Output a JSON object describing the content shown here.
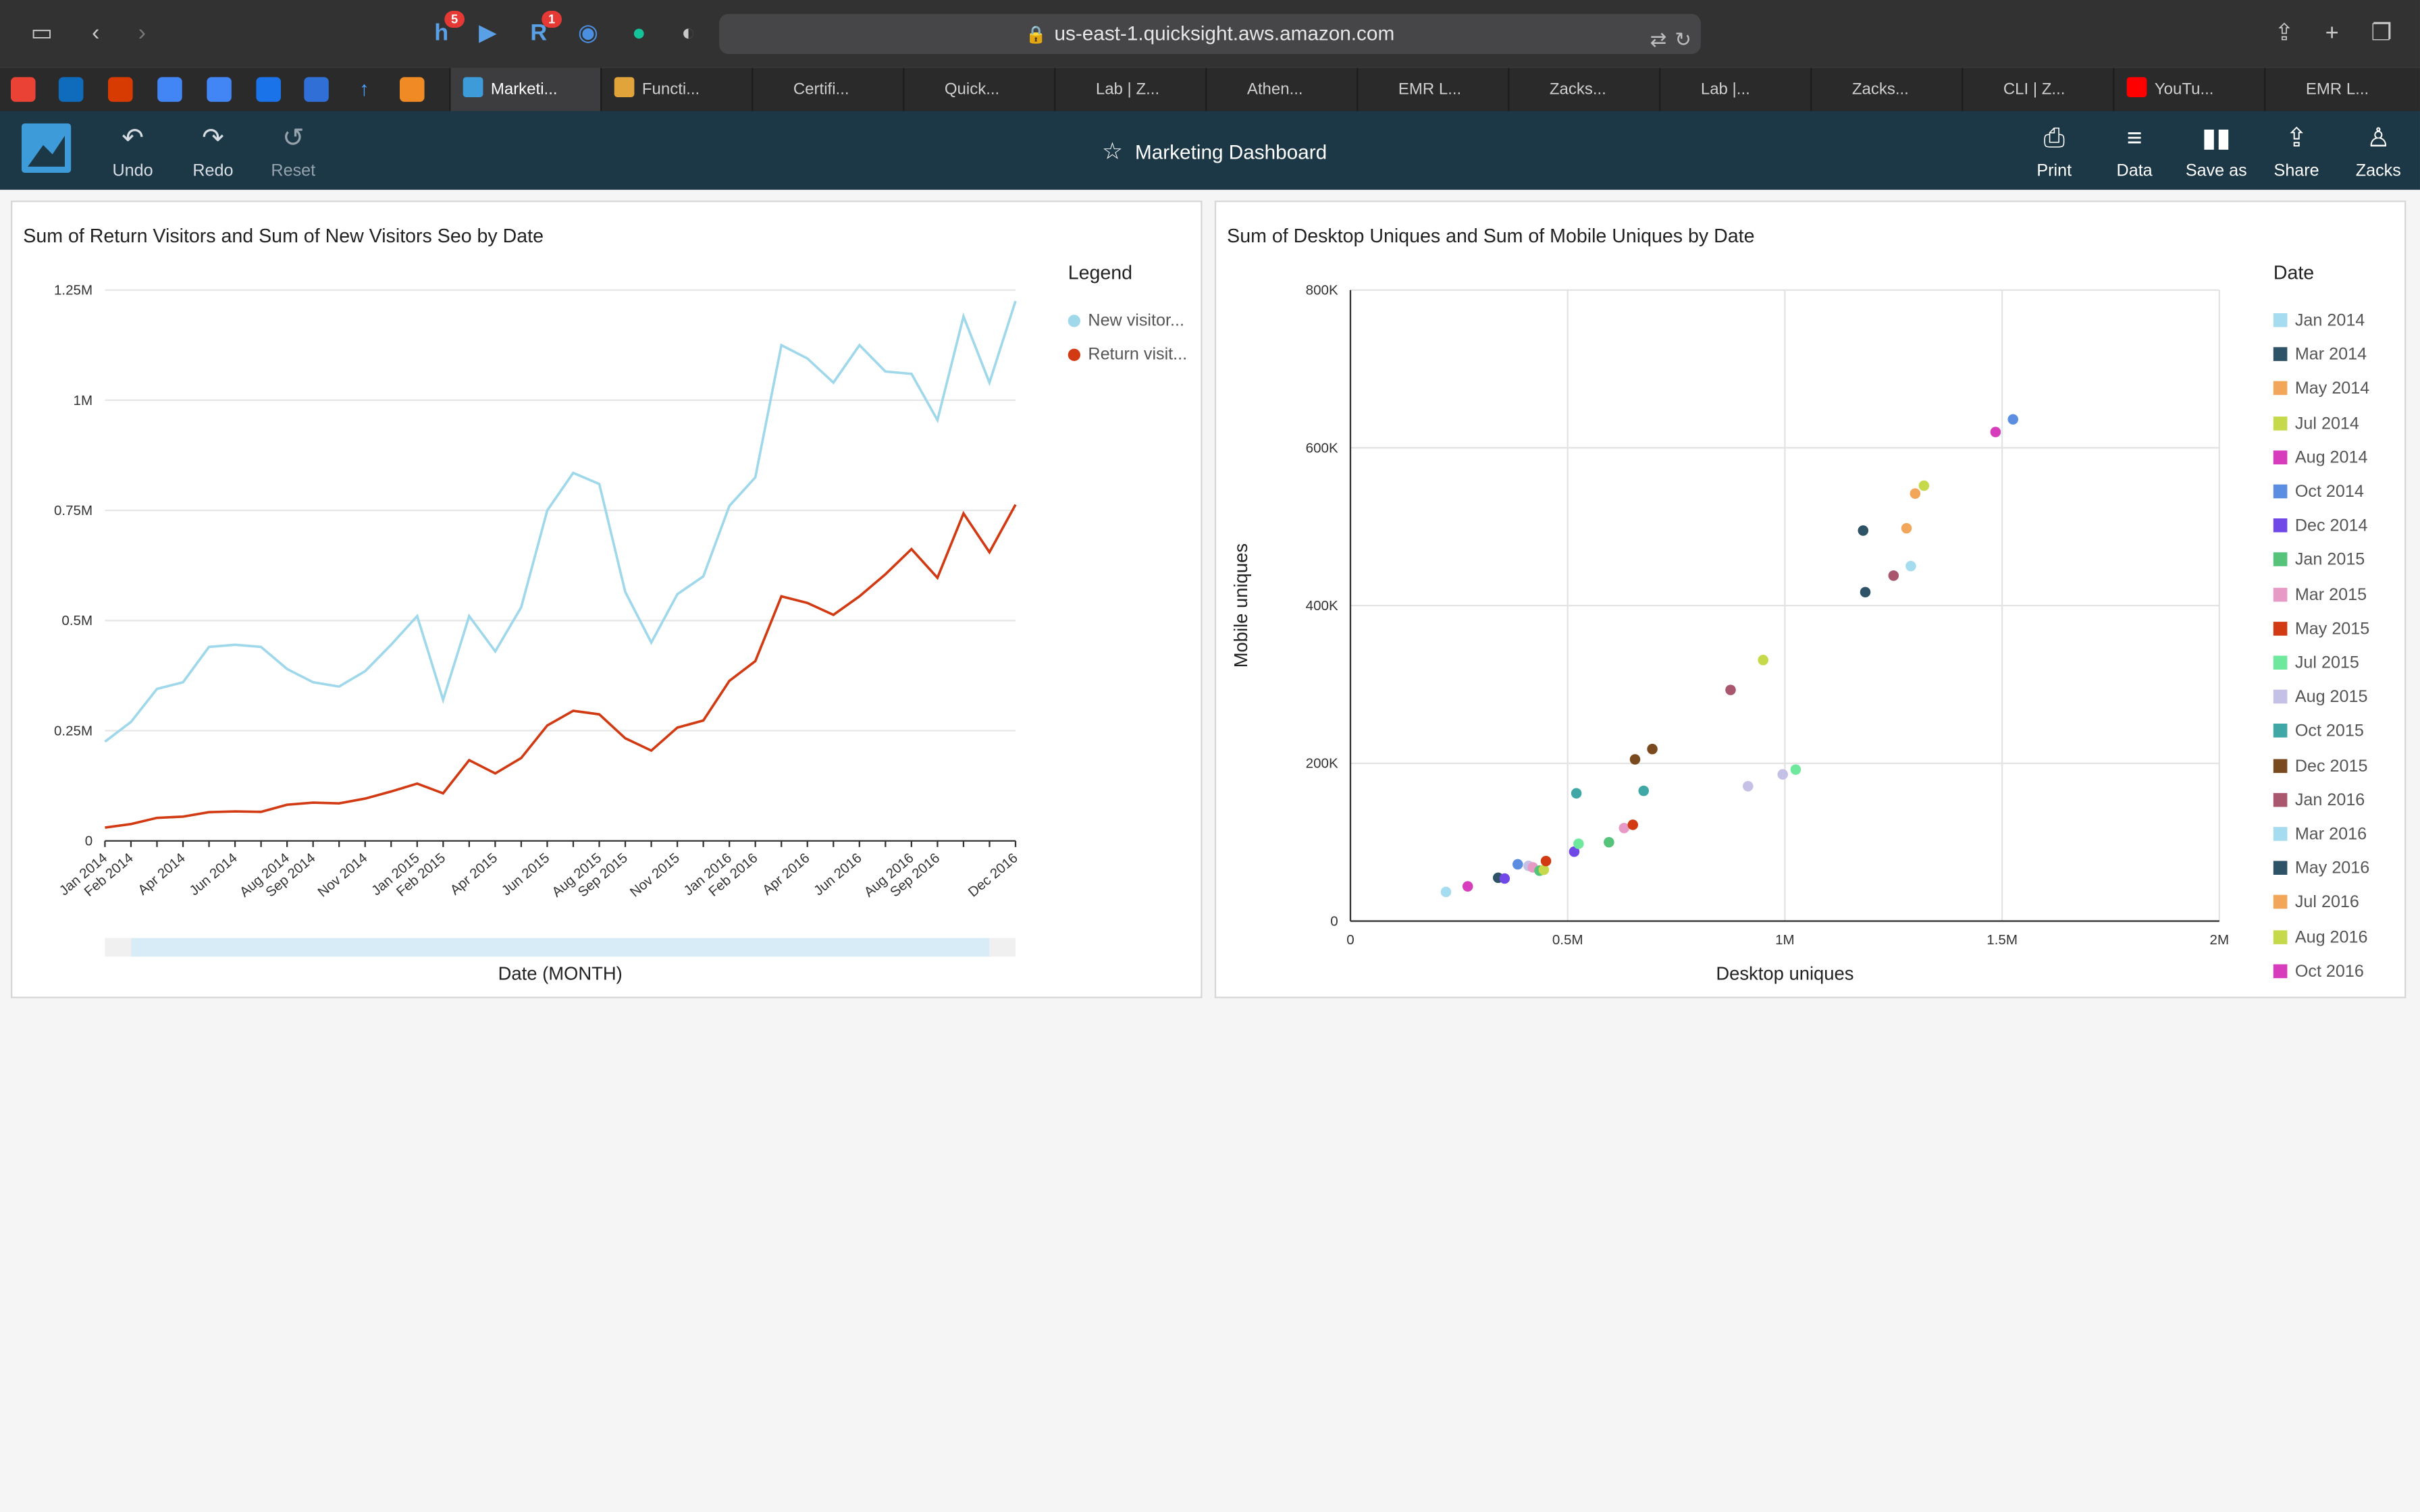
{
  "browser": {
    "url": "us-east-1.quicksight.aws.amazon.com",
    "badges": {
      "honey": "5",
      "r_ext": "1"
    },
    "tabs": [
      "Marketi...",
      "Functi...",
      "Certifi...",
      "Quick...",
      "Lab | Z...",
      "Athen...",
      "EMR L...",
      "Zacks...",
      "Lab |...",
      "Zacks...",
      "CLI | Z...",
      "YouTu...",
      "EMR L..."
    ]
  },
  "app": {
    "undo": "Undo",
    "redo": "Redo",
    "reset": "Reset",
    "dashboard_title": "Marketing Dashboard",
    "print": "Print",
    "data": "Data",
    "save_as": "Save as",
    "share": "Share",
    "user": "Zacks"
  },
  "colors": {
    "new_visitors": "#9fd8ea",
    "return_visitors": "#d13a12",
    "header_bg": "#1c3746"
  },
  "chart_data": [
    {
      "type": "line",
      "title": "Sum of Return Visitors and Sum of New Visitors Seo by Date",
      "xlabel": "Date (MONTH)",
      "ylabel": "",
      "legend_title": "Legend",
      "legend_position": "right",
      "ylim": [
        0,
        1250000
      ],
      "y_ticks": [
        "0",
        "0.25M",
        "0.5M",
        "0.75M",
        "1M",
        "1.25M"
      ],
      "x_tick_labels": [
        "Jan 2014",
        "Feb 2014",
        "Apr 2014",
        "Jun 2014",
        "Aug 2014",
        "Sep 2014",
        "Nov 2014",
        "Jan 2015",
        "Feb 2015",
        "Apr 2015",
        "Jun 2015",
        "Aug 2015",
        "Sep 2015",
        "Nov 2015",
        "Jan 2016",
        "Feb 2016",
        "Apr 2016",
        "Jun 2016",
        "Aug 2016",
        "Sep 2016",
        "Dec 2016"
      ],
      "x": [
        "Jan 2014",
        "Feb 2014",
        "Mar 2014",
        "Apr 2014",
        "May 2014",
        "Jun 2014",
        "Jul 2014",
        "Aug 2014",
        "Sep 2014",
        "Oct 2014",
        "Nov 2014",
        "Dec 2014",
        "Jan 2015",
        "Feb 2015",
        "Mar 2015",
        "Apr 2015",
        "May 2015",
        "Jun 2015",
        "Jul 2015",
        "Aug 2015",
        "Sep 2015",
        "Oct 2015",
        "Nov 2015",
        "Dec 2015",
        "Jan 2016",
        "Feb 2016",
        "Mar 2016",
        "Apr 2016",
        "May 2016",
        "Jun 2016",
        "Jul 2016",
        "Aug 2016",
        "Sep 2016",
        "Oct 2016",
        "Nov 2016",
        "Dec 2016"
      ],
      "series": [
        {
          "name": "New visitor...",
          "values": [
            225000,
            270000,
            345000,
            360000,
            440000,
            445000,
            440000,
            390000,
            360000,
            350000,
            385000,
            445000,
            510000,
            320000,
            510000,
            430000,
            530000,
            750000,
            835000,
            810000,
            565000,
            450000,
            560000,
            600000,
            760000,
            825000,
            1125000,
            1095000,
            1040000,
            1125000,
            1065000,
            1060000,
            955000,
            1190000,
            1040000,
            1225000
          ]
        },
        {
          "name": "Return visit...",
          "values": [
            30000,
            38000,
            52000,
            55000,
            65000,
            67000,
            66000,
            82000,
            87000,
            85000,
            96000,
            112000,
            130000,
            108000,
            183000,
            153000,
            188000,
            262000,
            295000,
            287000,
            233000,
            205000,
            257000,
            273000,
            363000,
            408000,
            555000,
            540000,
            513000,
            555000,
            605000,
            662000,
            597000,
            743000,
            655000,
            763000
          ]
        }
      ]
    },
    {
      "type": "scatter",
      "title": "Sum of Desktop Uniques and Sum of Mobile Uniques by Date",
      "xlabel": "Desktop uniques",
      "ylabel": "Mobile uniques",
      "xlim": [
        0,
        2000000
      ],
      "ylim": [
        0,
        800000
      ],
      "x_ticks": [
        "0",
        "0.5M",
        "1M",
        "1.5M",
        "2M"
      ],
      "y_ticks": [
        "0",
        "200K",
        "400K",
        "600K",
        "800K"
      ],
      "legend_title": "Date",
      "legend_position": "right",
      "legend": [
        {
          "label": "Jan 2014",
          "color": "#a6dcef"
        },
        {
          "label": "Mar 2014",
          "color": "#2e5266"
        },
        {
          "label": "May 2014",
          "color": "#f2a65a"
        },
        {
          "label": "Jul 2014",
          "color": "#c5d94a"
        },
        {
          "label": "Aug 2014",
          "color": "#d63cbb"
        },
        {
          "label": "Oct 2014",
          "color": "#5b8ee0"
        },
        {
          "label": "Dec 2014",
          "color": "#7048e8"
        },
        {
          "label": "Jan 2015",
          "color": "#55c47a"
        },
        {
          "label": "Mar 2015",
          "color": "#e89ac7"
        },
        {
          "label": "May 2015",
          "color": "#d13a12"
        },
        {
          "label": "Jul 2015",
          "color": "#6ee89c"
        },
        {
          "label": "Aug 2015",
          "color": "#c4c0e6"
        },
        {
          "label": "Oct 2015",
          "color": "#3fa8a6"
        },
        {
          "label": "Dec 2015",
          "color": "#7a4a1f"
        },
        {
          "label": "Jan 2016",
          "color": "#a8576f"
        },
        {
          "label": "Mar 2016",
          "color": "#a6dcef"
        },
        {
          "label": "May 2016",
          "color": "#2e5266"
        },
        {
          "label": "Jul 2016",
          "color": "#f2a65a"
        },
        {
          "label": "Aug 2016",
          "color": "#c5d94a"
        },
        {
          "label": "Oct 2016",
          "color": "#d63cbb"
        }
      ],
      "points": [
        {
          "x": 220000,
          "y": 37000,
          "color": "#a6dcef"
        },
        {
          "x": 270000,
          "y": 44000,
          "color": "#d63cbb"
        },
        {
          "x": 340000,
          "y": 55000,
          "color": "#2e5266"
        },
        {
          "x": 355000,
          "y": 54000,
          "color": "#7048e8"
        },
        {
          "x": 385000,
          "y": 72000,
          "color": "#5b8ee0"
        },
        {
          "x": 410000,
          "y": 70000,
          "color": "#c4c0e6"
        },
        {
          "x": 420000,
          "y": 68000,
          "color": "#e89ac7"
        },
        {
          "x": 435000,
          "y": 64000,
          "color": "#55c47a"
        },
        {
          "x": 445000,
          "y": 65000,
          "color": "#c5d94a"
        },
        {
          "x": 450000,
          "y": 76000,
          "color": "#d13a12"
        },
        {
          "x": 515000,
          "y": 88000,
          "color": "#7048e8"
        },
        {
          "x": 525000,
          "y": 98000,
          "color": "#6ee89c"
        },
        {
          "x": 520000,
          "y": 162000,
          "color": "#3fa8a6"
        },
        {
          "x": 595000,
          "y": 100000,
          "color": "#55c47a"
        },
        {
          "x": 630000,
          "y": 118000,
          "color": "#e89ac7"
        },
        {
          "x": 650000,
          "y": 122000,
          "color": "#d13a12"
        },
        {
          "x": 655000,
          "y": 205000,
          "color": "#7a4a1f"
        },
        {
          "x": 675000,
          "y": 165000,
          "color": "#3fa8a6"
        },
        {
          "x": 695000,
          "y": 218000,
          "color": "#7a4a1f"
        },
        {
          "x": 875000,
          "y": 293000,
          "color": "#a8576f"
        },
        {
          "x": 915000,
          "y": 171000,
          "color": "#c4c0e6"
        },
        {
          "x": 950000,
          "y": 331000,
          "color": "#c5d94a"
        },
        {
          "x": 995000,
          "y": 186000,
          "color": "#c4c0e6"
        },
        {
          "x": 1025000,
          "y": 192000,
          "color": "#6ee89c"
        },
        {
          "x": 1180000,
          "y": 495000,
          "color": "#2e5266"
        },
        {
          "x": 1185000,
          "y": 417000,
          "color": "#2e5266"
        },
        {
          "x": 1250000,
          "y": 438000,
          "color": "#a8576f"
        },
        {
          "x": 1280000,
          "y": 498000,
          "color": "#f2a65a"
        },
        {
          "x": 1290000,
          "y": 450000,
          "color": "#a6dcef"
        },
        {
          "x": 1300000,
          "y": 542000,
          "color": "#f2a65a"
        },
        {
          "x": 1320000,
          "y": 552000,
          "color": "#c5d94a"
        },
        {
          "x": 1485000,
          "y": 620000,
          "color": "#d63cbb"
        },
        {
          "x": 1525000,
          "y": 636000,
          "color": "#5b8ee0"
        }
      ]
    }
  ]
}
